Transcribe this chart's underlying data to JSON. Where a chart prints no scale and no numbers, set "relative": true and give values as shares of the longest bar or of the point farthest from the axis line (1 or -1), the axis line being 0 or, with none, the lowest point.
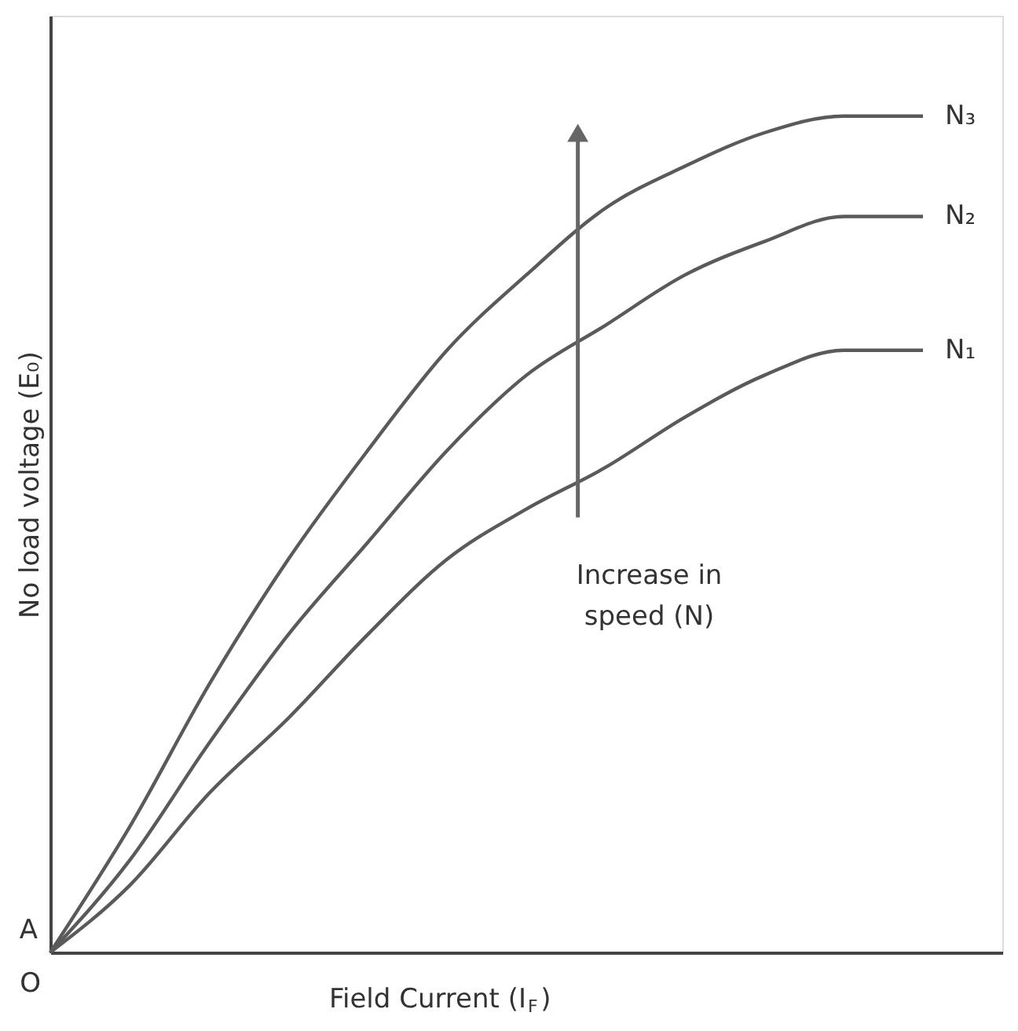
{
  "chart_data": {
    "type": "line",
    "relative": true,
    "xlabel": "Field Current (I$_{F}$)",
    "ylabel": "No load voltage (E₀)",
    "categories": [
      null,
      null,
      null,
      null,
      null,
      null,
      null,
      null,
      null,
      null,
      null,
      null
    ],
    "series": [
      {
        "name": "N₃",
        "color": "#5a5a5a",
        "values": [
          0,
          0.15,
          0.32,
          0.47,
          0.6,
          0.72,
          0.81,
          0.89,
          0.94,
          0.98,
          1.0,
          1.0
        ]
      },
      {
        "name": "N₂",
        "color": "#5a5a5a",
        "values": [
          0,
          0.11,
          0.25,
          0.38,
          0.49,
          0.6,
          0.69,
          0.75,
          0.81,
          0.85,
          0.88,
          0.88
        ]
      },
      {
        "name": "N₁",
        "color": "#5a5a5a",
        "values": [
          0,
          0.08,
          0.19,
          0.28,
          0.38,
          0.47,
          0.53,
          0.58,
          0.64,
          0.69,
          0.72,
          0.72
        ]
      }
    ],
    "annotations": [
      "A",
      "O",
      "Increase in\nspeed (N)"
    ],
    "tick_labels": false,
    "grid": false,
    "legend": false,
    "marker": "none",
    "line_style": "solid"
  }
}
